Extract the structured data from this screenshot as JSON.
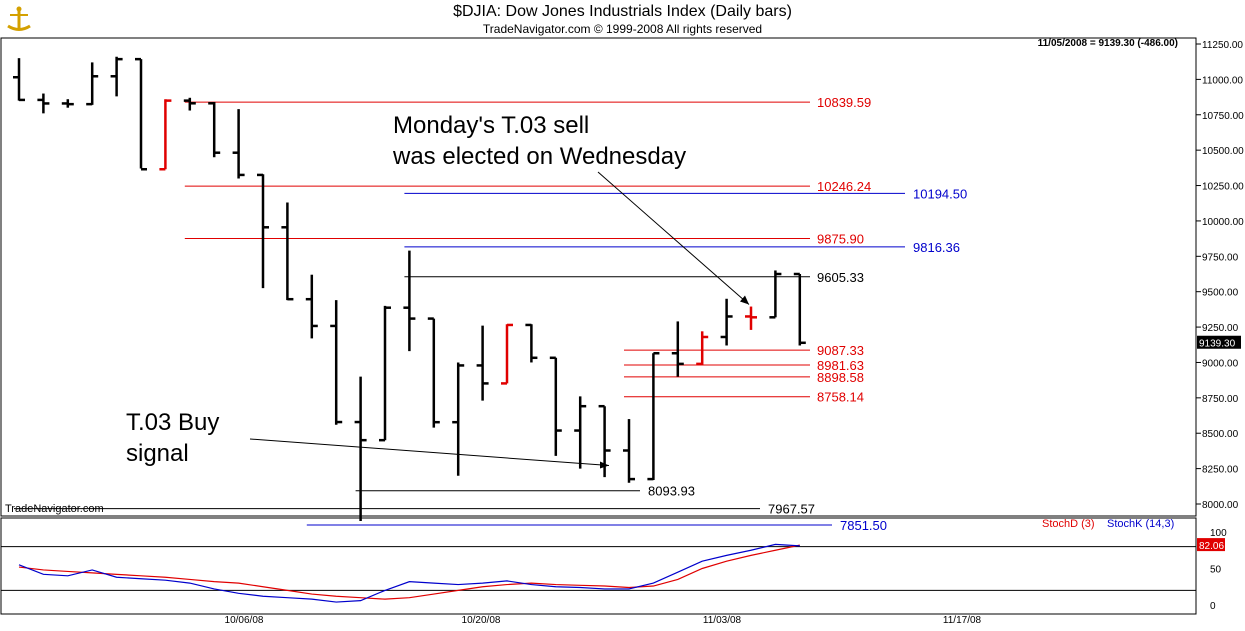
{
  "header": {
    "title": "$DJIA:  Dow Jones Industrials Index  (Daily bars)",
    "subtitle": "TradeNavigator.com © 1999-2008 All rights reserved"
  },
  "chart_data": [
    {
      "type": "ohlc",
      "readout": "11/05/2008 = 9139.30 (-486.00)",
      "watermark": "TradeNavigator.com",
      "last_price_tag": "9139.30",
      "ylim": [
        7850,
        11300
      ],
      "y_ticks": [
        "11250.00",
        "11000.00",
        "10750.00",
        "10500.00",
        "10250.00",
        "10000.00",
        "9750.00",
        "9500.00",
        "9250.00",
        "9000.00",
        "8750.00",
        "8500.00",
        "8250.00",
        "8000.00"
      ],
      "x_labels": [
        "10/06/08",
        "10/20/08",
        "11/03/08",
        "11/17/08"
      ],
      "bar_colors": {
        "normal": "#000000",
        "signal": "#e00000",
        "buy_tick": "#00aa00"
      },
      "bars": [
        {
          "date": "09/22/08",
          "open": 11015,
          "high": 11150,
          "low": 10850,
          "close": 10855,
          "color": "#000000"
        },
        {
          "date": "09/23/08",
          "open": 10855,
          "high": 10900,
          "low": 10760,
          "close": 10830,
          "color": "#000000"
        },
        {
          "date": "09/24/08",
          "open": 10830,
          "high": 10860,
          "low": 10800,
          "close": 10825,
          "color": "#000000"
        },
        {
          "date": "09/25/08",
          "open": 10825,
          "high": 11120,
          "low": 10820,
          "close": 11022,
          "color": "#000000"
        },
        {
          "date": "09/26/08",
          "open": 11022,
          "high": 11160,
          "low": 10880,
          "close": 11143,
          "color": "#000000"
        },
        {
          "date": "09/29/08",
          "open": 11143,
          "high": 11143,
          "low": 10370,
          "close": 10365,
          "color": "#000000"
        },
        {
          "date": "09/30/08",
          "open": 10365,
          "high": 10860,
          "low": 10365,
          "close": 10850,
          "color": "#e00000"
        },
        {
          "date": "10/01/08",
          "open": 10850,
          "high": 10870,
          "low": 10780,
          "close": 10831,
          "color": "#000000"
        },
        {
          "date": "10/02/08",
          "open": 10831,
          "high": 10840,
          "low": 10450,
          "close": 10482,
          "color": "#000000"
        },
        {
          "date": "10/03/08",
          "open": 10482,
          "high": 10790,
          "low": 10300,
          "close": 10325,
          "color": "#000000"
        },
        {
          "date": "10/06/08",
          "open": 10325,
          "high": 10330,
          "low": 9525,
          "close": 9955,
          "color": "#000000"
        },
        {
          "date": "10/07/08",
          "open": 9955,
          "high": 10130,
          "low": 9440,
          "close": 9447,
          "color": "#000000"
        },
        {
          "date": "10/08/08",
          "open": 9447,
          "high": 9620,
          "low": 9170,
          "close": 9258,
          "color": "#000000"
        },
        {
          "date": "10/09/08",
          "open": 9258,
          "high": 9440,
          "low": 8560,
          "close": 8579,
          "color": "#000000"
        },
        {
          "date": "10/10/08",
          "open": 8579,
          "high": 8900,
          "low": 7880,
          "close": 8451,
          "color": "#000000"
        },
        {
          "date": "10/13/08",
          "open": 8451,
          "high": 9400,
          "low": 8450,
          "close": 9387,
          "color": "#000000"
        },
        {
          "date": "10/14/08",
          "open": 9387,
          "high": 9790,
          "low": 9080,
          "close": 9310,
          "color": "#000000"
        },
        {
          "date": "10/15/08",
          "open": 9310,
          "high": 9310,
          "low": 8540,
          "close": 8578,
          "color": "#000000"
        },
        {
          "date": "10/16/08",
          "open": 8578,
          "high": 9000,
          "low": 8200,
          "close": 8979,
          "color": "#000000"
        },
        {
          "date": "10/17/08",
          "open": 8979,
          "high": 9260,
          "low": 8730,
          "close": 8852,
          "color": "#000000"
        },
        {
          "date": "10/20/08",
          "open": 8852,
          "high": 9270,
          "low": 8852,
          "close": 9265,
          "color": "#e00000"
        },
        {
          "date": "10/21/08",
          "open": 9265,
          "high": 9270,
          "low": 9000,
          "close": 9033,
          "color": "#000000"
        },
        {
          "date": "10/22/08",
          "open": 9033,
          "high": 9033,
          "low": 8340,
          "close": 8519,
          "color": "#000000"
        },
        {
          "date": "10/23/08",
          "open": 8519,
          "high": 8760,
          "low": 8250,
          "close": 8691,
          "color": "#000000"
        },
        {
          "date": "10/24/08",
          "open": 8691,
          "high": 8691,
          "low": 8190,
          "close": 8378,
          "color": "#000000"
        },
        {
          "date": "10/27/08",
          "open": 8378,
          "high": 8600,
          "low": 8150,
          "close": 8176,
          "color": "#000000"
        },
        {
          "date": "10/28/08",
          "open": 8176,
          "high": 9065,
          "low": 8170,
          "close": 9065,
          "color": "#000000"
        },
        {
          "date": "10/29/08",
          "open": 9065,
          "high": 9290,
          "low": 8900,
          "close": 8990,
          "color": "#000000"
        },
        {
          "date": "10/30/08",
          "open": 8990,
          "high": 9220,
          "low": 8980,
          "close": 9180,
          "color": "#e00000"
        },
        {
          "date": "10/31/08",
          "open": 9180,
          "high": 9450,
          "low": 9120,
          "close": 9325,
          "color": "#000000"
        },
        {
          "date": "11/03/08",
          "open": 9325,
          "high": 9395,
          "low": 9230,
          "close": 9319,
          "color": "#e00000"
        },
        {
          "date": "11/04/08",
          "open": 9319,
          "high": 9650,
          "low": 9319,
          "close": 9625,
          "color": "#000000"
        },
        {
          "date": "11/05/08",
          "open": 9625,
          "high": 9625,
          "low": 9120,
          "close": 9139,
          "color": "#000000"
        }
      ],
      "levels": [
        {
          "value": 10839.59,
          "label": "10839.59",
          "color": "#e00000",
          "start": "10/01/08"
        },
        {
          "value": 10246.24,
          "label": "10246.24",
          "color": "#e00000",
          "start": "10/01/08"
        },
        {
          "value": 10194.5,
          "label": "10194.50",
          "color": "#0000cc",
          "start": "10/14/08"
        },
        {
          "value": 9875.9,
          "label": "9875.90",
          "color": "#e00000",
          "start": "10/01/08"
        },
        {
          "value": 9816.36,
          "label": "9816.36",
          "color": "#0000cc",
          "start": "10/14/08"
        },
        {
          "value": 9605.33,
          "label": "9605.33",
          "color": "#000000",
          "start": "10/14/08"
        },
        {
          "value": 9087.33,
          "label": "9087.33",
          "color": "#e00000",
          "start": "10/27/08"
        },
        {
          "value": 8981.63,
          "label": "8981.63",
          "color": "#e00000",
          "start": "10/27/08"
        },
        {
          "value": 8898.58,
          "label": "8898.58",
          "color": "#e00000",
          "start": "10/27/08"
        },
        {
          "value": 8758.14,
          "label": "8758.14",
          "color": "#e00000",
          "start": "10/27/08"
        },
        {
          "value": 8093.93,
          "label": "8093.93",
          "color": "#000000",
          "start": "10/10/08"
        },
        {
          "value": 7967.57,
          "label": "7967.57",
          "color": "#000000",
          "start": "09/22/08"
        },
        {
          "value": 7851.5,
          "label": "7851.50",
          "color": "#0000cc",
          "start": "10/08/08"
        }
      ],
      "annotations": [
        {
          "text": "Monday's T.03 sell\nwas elected on Wednesday",
          "arrow_to_date": "11/03/08",
          "arrow_to_value": 9395
        },
        {
          "text": "T.03 Buy\nsignal",
          "arrow_to_date": "10/27/08",
          "arrow_to_value": 8300
        }
      ]
    },
    {
      "type": "line",
      "indicator": "Stochastic",
      "legend": [
        "StochD (3)",
        "StochK (14,3)"
      ],
      "ylim": [
        0,
        110
      ],
      "y_ticks": [
        "100",
        "50",
        "0"
      ],
      "reference_lines": [
        80,
        20
      ],
      "last_value_tag": "82.06",
      "series": [
        {
          "name": "StochD (3)",
          "color": "#e00000",
          "values": [
            52,
            48,
            46,
            44,
            42,
            40,
            38,
            35,
            32,
            30,
            25,
            20,
            15,
            12,
            10,
            8,
            10,
            15,
            20,
            25,
            28,
            30,
            28,
            27,
            26,
            24,
            26,
            35,
            50,
            60,
            68,
            75,
            82
          ]
        },
        {
          "name": "StochK (14,3)",
          "color": "#0000cc",
          "values": [
            55,
            42,
            40,
            48,
            38,
            36,
            34,
            30,
            22,
            16,
            12,
            10,
            8,
            4,
            6,
            20,
            32,
            30,
            28,
            30,
            33,
            28,
            25,
            24,
            22,
            22,
            30,
            45,
            60,
            68,
            75,
            83,
            81
          ]
        }
      ]
    }
  ]
}
